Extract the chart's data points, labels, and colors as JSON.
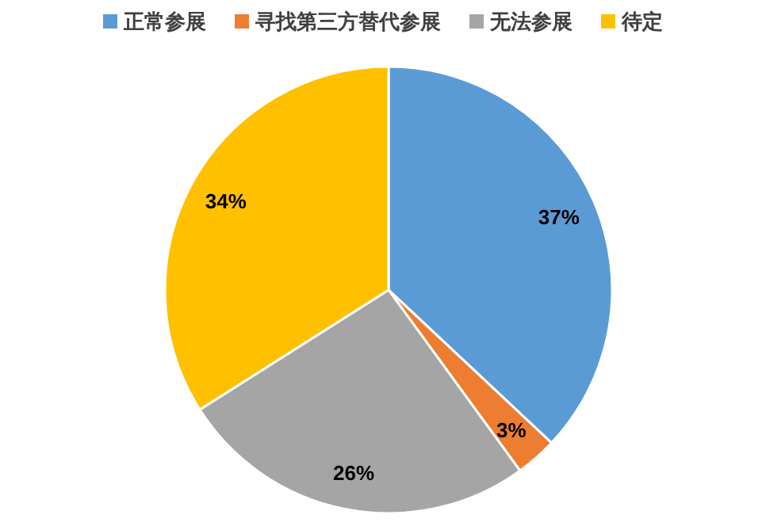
{
  "chart_data": {
    "type": "pie",
    "categories": [
      "正常参展",
      "寻找第三方替代参展",
      "无法参展",
      "待定"
    ],
    "values": [
      37,
      3,
      26,
      34
    ],
    "colors": [
      "#5b9bd5",
      "#ed7d31",
      "#a5a5a5",
      "#ffc000"
    ],
    "value_labels": [
      "37%",
      "3%",
      "26%",
      "34%"
    ],
    "legend": "top"
  }
}
